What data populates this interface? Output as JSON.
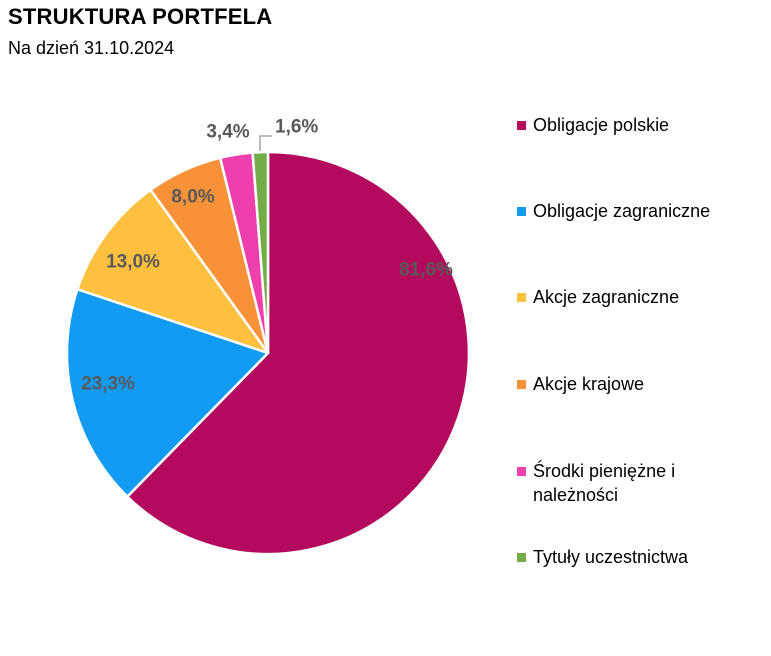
{
  "header": {
    "title": "STRUKTURA PORTFELA",
    "subtitle": "Na dzień 31.10.2024"
  },
  "chart_data": {
    "type": "pie",
    "title": "STRUKTURA PORTFELA",
    "subtitle": "Na dzień 31.10.2024",
    "legend_position": "right",
    "start_angle": "12 o'clock, clockwise",
    "value_label_color": "#595959",
    "leader_line_color": "#A6A6A6",
    "slice_border_color": "#FFFFFF",
    "background_color": "#FFFFFF",
    "slices": [
      {
        "label": "Obligacje polskie",
        "value": 81.6,
        "display": "81,6%",
        "color": "#B40A5E"
      },
      {
        "label": "Obligacje zagraniczne",
        "value": 23.3,
        "display": "23,3%",
        "color": "#119BF2"
      },
      {
        "label": "Akcje zagraniczne",
        "value": 13.0,
        "display": "13,0%",
        "color": "#FFBF3F"
      },
      {
        "label": "Akcje krajowe",
        "value": 8.0,
        "display": "8,0%",
        "color": "#F89238"
      },
      {
        "label": "Środki pieniężne i należności",
        "value": 3.4,
        "display": "3,4%",
        "color": "#EF3FAC"
      },
      {
        "label": "Tytuły uczestnictwa",
        "value": 1.6,
        "display": "1,6%",
        "color": "#72AD47"
      }
    ]
  }
}
